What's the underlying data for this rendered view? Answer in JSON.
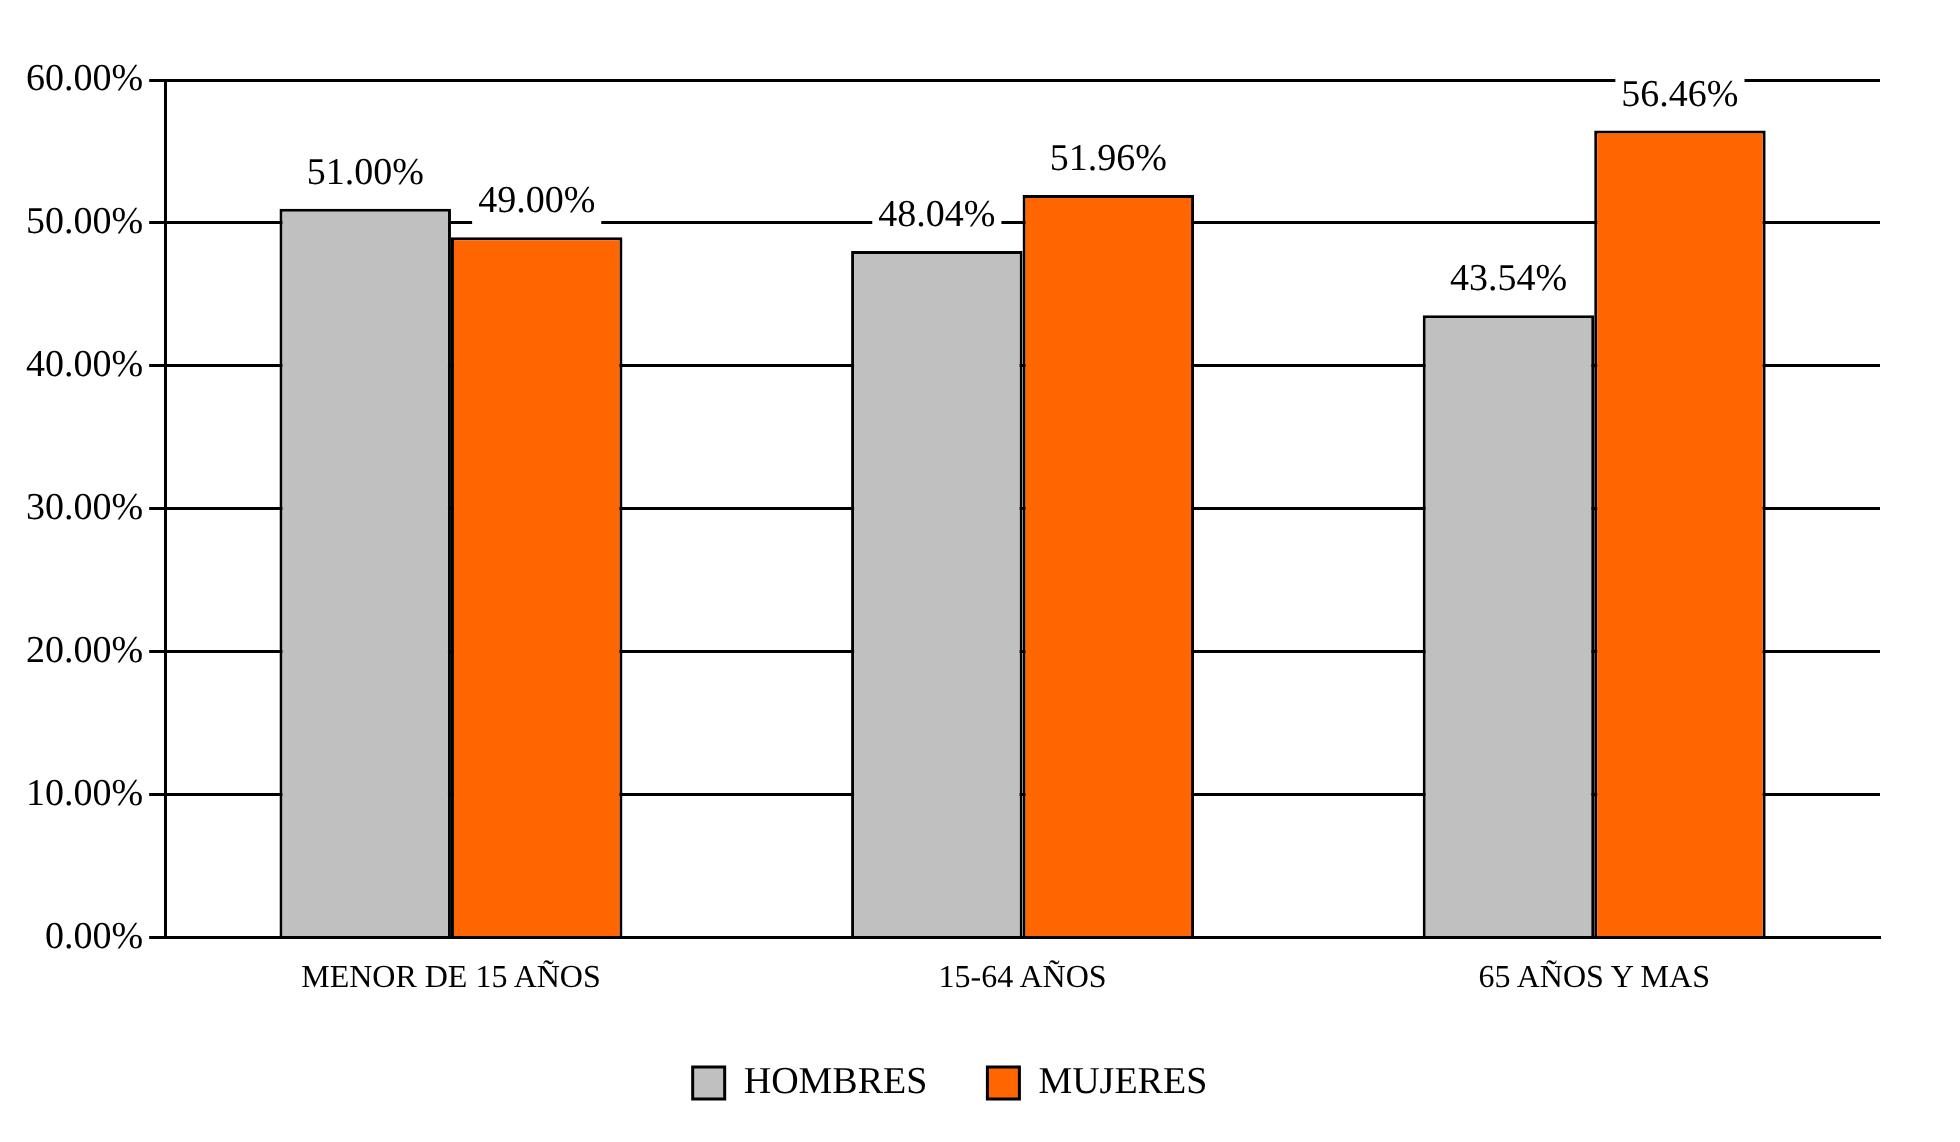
{
  "chart_data": {
    "type": "bar",
    "categories": [
      "MENOR DE 15 AÑOS",
      "15-64 AÑOS",
      "65 AÑOS Y MAS"
    ],
    "series": [
      {
        "name": "HOMBRES",
        "color": "#c0c0c0",
        "values": [
          51.0,
          48.04,
          43.54
        ],
        "value_labels": [
          "51.00%",
          "48.04%",
          "43.54%"
        ]
      },
      {
        "name": "MUJERES",
        "color": "#ff6600",
        "values": [
          49.0,
          51.96,
          56.46
        ],
        "value_labels": [
          "49.00%",
          "51.96%",
          "56.46%"
        ]
      }
    ],
    "ylim": [
      0,
      60
    ],
    "yticks": [
      {
        "value": 0,
        "label": "0.00%"
      },
      {
        "value": 10,
        "label": "10.00%"
      },
      {
        "value": 20,
        "label": "20.00%"
      },
      {
        "value": 30,
        "label": "30.00%"
      },
      {
        "value": 40,
        "label": "40.00%"
      },
      {
        "value": 50,
        "label": "50.00%"
      },
      {
        "value": 60,
        "label": "60.00%"
      }
    ],
    "grid": "y",
    "legend": "bottom"
  }
}
